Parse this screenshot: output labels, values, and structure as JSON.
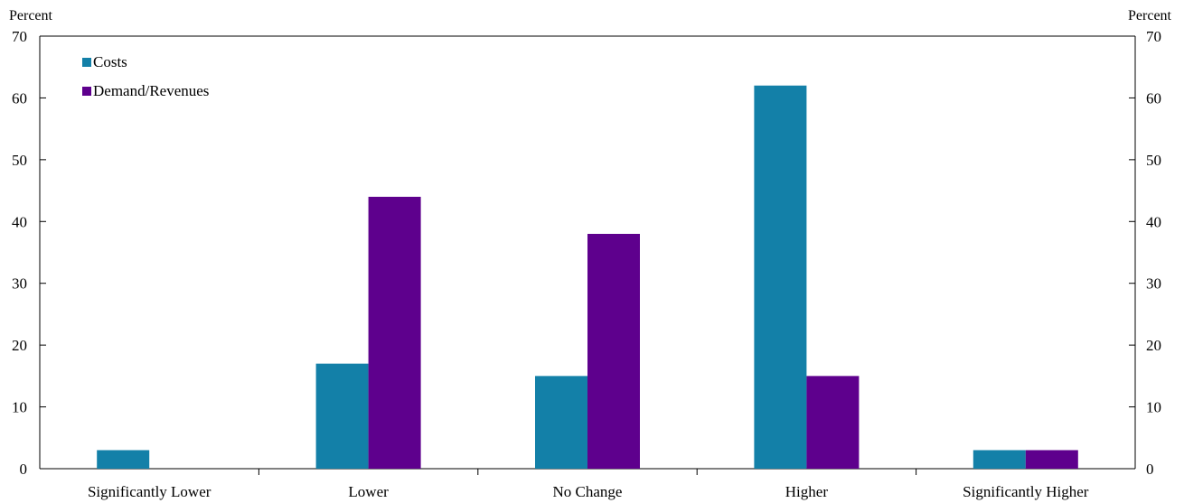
{
  "chart_data": {
    "type": "bar",
    "categories": [
      "Significantly Lower",
      "Lower",
      "No Change",
      "Higher",
      "Significantly Higher"
    ],
    "series": [
      {
        "name": "Costs",
        "values": [
          3,
          17,
          15,
          62,
          3
        ],
        "color": "#1380A8"
      },
      {
        "name": "Demand/Revenues",
        "values": [
          0,
          44,
          38,
          15,
          3
        ],
        "color": "#5E008D"
      }
    ],
    "ylabel_left": "Percent",
    "ylabel_right": "Percent",
    "ylim": [
      0,
      70
    ],
    "yticks": [
      0,
      10,
      20,
      30,
      40,
      50,
      60,
      70
    ],
    "grid": false,
    "legend_position": "top-left"
  }
}
